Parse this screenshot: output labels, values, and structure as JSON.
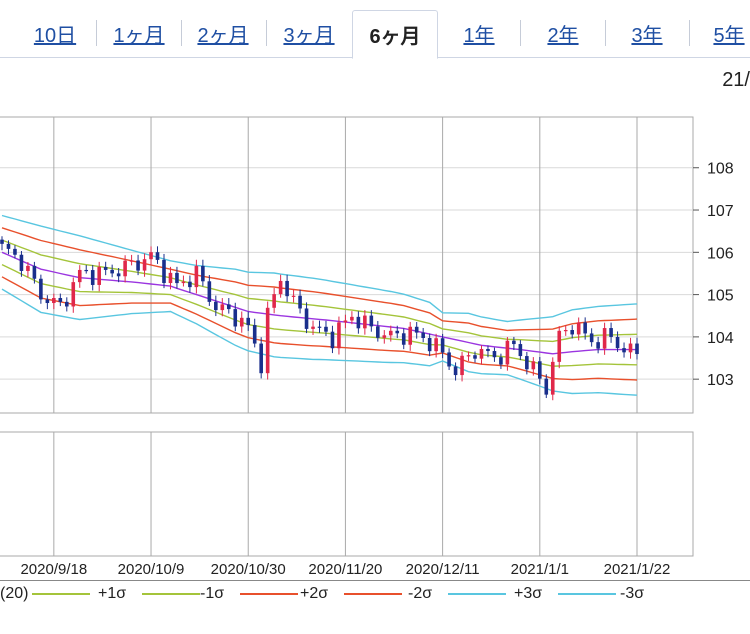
{
  "tabs": [
    {
      "label": "10日",
      "active": false
    },
    {
      "label": "1ヶ月",
      "active": false
    },
    {
      "label": "2ヶ月",
      "active": false
    },
    {
      "label": "3ヶ月",
      "active": false
    },
    {
      "label": "6ヶ月",
      "active": true
    },
    {
      "label": "1年",
      "active": false
    },
    {
      "label": "2年",
      "active": false
    },
    {
      "label": "3年",
      "active": false
    },
    {
      "label": "5年",
      "active": false
    }
  ],
  "partial_label": "21/",
  "colors": {
    "up_candle": "#e0284a",
    "down_candle": "#1a2f8c",
    "ma": "#9b35e0",
    "sigma1": "#a4c43a",
    "sigma2": "#e8502c",
    "sigma3": "#59c6e0",
    "grid": "#a9a9a9"
  },
  "legend": [
    {
      "label": "(20)",
      "color": "#a4c43a"
    },
    {
      "label": "+1σ",
      "color": "#a4c43a"
    },
    {
      "label": "-1σ",
      "color": "#e8502c"
    },
    {
      "label": "+2σ",
      "color": "#e8502c"
    },
    {
      "label": "-2σ",
      "color": "#59c6e0"
    },
    {
      "label": "+3σ",
      "color": "#59c6e0"
    },
    {
      "label": "-3σ",
      "color": "#59c6e0"
    }
  ],
  "chart_data": {
    "type": "candlestick",
    "y_ticks": [
      103,
      104,
      105,
      106,
      107,
      108
    ],
    "ylim": [
      102.2,
      109.2
    ],
    "x_tick_labels": [
      "2020/9/18",
      "2020/10/9",
      "2020/10/30",
      "2020/11/20",
      "2020/12/11",
      "2021/1/1",
      "2021/1/22"
    ],
    "x_tick_index": [
      8,
      23,
      38,
      53,
      68,
      83,
      98
    ],
    "n_points": 99,
    "close_anchors": [
      [
        0,
        106.1
      ],
      [
        3,
        105.8
      ],
      [
        6,
        105.0
      ],
      [
        9,
        104.7
      ],
      [
        12,
        105.5
      ],
      [
        16,
        105.5
      ],
      [
        20,
        105.7
      ],
      [
        23,
        105.9
      ],
      [
        27,
        105.2
      ],
      [
        30,
        105.5
      ],
      [
        33,
        104.7
      ],
      [
        36,
        104.5
      ],
      [
        38,
        104.2
      ],
      [
        40,
        103.4
      ],
      [
        41,
        104.5
      ],
      [
        43,
        105.4
      ],
      [
        45,
        104.8
      ],
      [
        48,
        104.2
      ],
      [
        51,
        104.0
      ],
      [
        54,
        104.5
      ],
      [
        57,
        104.2
      ],
      [
        60,
        104.0
      ],
      [
        63,
        104.1
      ],
      [
        66,
        103.9
      ],
      [
        68,
        103.6
      ],
      [
        70,
        103.2
      ],
      [
        73,
        103.7
      ],
      [
        76,
        103.5
      ],
      [
        79,
        103.8
      ],
      [
        82,
        103.2
      ],
      [
        84,
        102.8
      ],
      [
        86,
        104.0
      ],
      [
        88,
        104.3
      ],
      [
        91,
        103.9
      ],
      [
        94,
        104.0
      ],
      [
        96,
        103.7
      ],
      [
        98,
        103.6
      ]
    ],
    "ma_anchors": [
      [
        0,
        106.0
      ],
      [
        6,
        105.6
      ],
      [
        12,
        105.4
      ],
      [
        20,
        105.3
      ],
      [
        26,
        105.2
      ],
      [
        32,
        104.9
      ],
      [
        38,
        104.6
      ],
      [
        43,
        104.5
      ],
      [
        50,
        104.4
      ],
      [
        56,
        104.3
      ],
      [
        62,
        104.2
      ],
      [
        68,
        104.0
      ],
      [
        74,
        103.8
      ],
      [
        80,
        103.7
      ],
      [
        85,
        103.6
      ],
      [
        88,
        103.65
      ],
      [
        92,
        103.7
      ],
      [
        98,
        103.7
      ]
    ],
    "sd_anchors": [
      [
        0,
        0.29
      ],
      [
        6,
        0.34
      ],
      [
        12,
        0.33
      ],
      [
        20,
        0.25
      ],
      [
        26,
        0.2
      ],
      [
        30,
        0.23
      ],
      [
        36,
        0.3
      ],
      [
        42,
        0.33
      ],
      [
        48,
        0.32
      ],
      [
        54,
        0.3
      ],
      [
        60,
        0.28
      ],
      [
        66,
        0.25
      ],
      [
        68,
        0.19
      ],
      [
        72,
        0.23
      ],
      [
        78,
        0.21
      ],
      [
        84,
        0.28
      ],
      [
        88,
        0.33
      ],
      [
        92,
        0.34
      ],
      [
        98,
        0.36
      ]
    ]
  }
}
